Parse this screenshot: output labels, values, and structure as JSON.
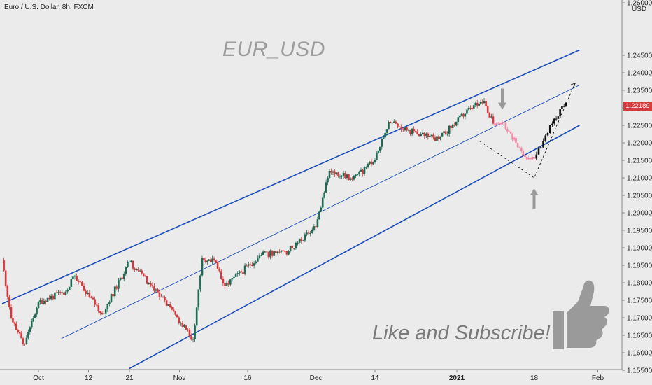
{
  "header": {
    "symbol_line": "Euro / U.S. Dollar, 8h, FXCM",
    "price_axis_unit": "USD"
  },
  "watermark": "EUR_USD",
  "call_to_action": "Like and Subscribe!",
  "current_price": "1.22189",
  "colors": {
    "bull": "#1e6b55",
    "bear": "#d9373b",
    "projection_bear": "#f08aa6",
    "projection_bull": "#111111",
    "channel": "#1b4fb8",
    "arrow": "#9a9a9a",
    "price_tag": "#d83a3e"
  },
  "chart_data": {
    "type": "candlestick",
    "xaxis_labels": [
      "Oct",
      "12",
      "21",
      "Nov",
      "16",
      "Dec",
      "14",
      "2021",
      "18",
      "Feb"
    ],
    "yaxis_ticks": [
      "1.26000",
      "1.24500",
      "1.24000",
      "1.23500",
      "1.23000",
      "1.22500",
      "1.22000",
      "1.21500",
      "1.21000",
      "1.20500",
      "1.20000",
      "1.19500",
      "1.19000",
      "1.18500",
      "1.18000",
      "1.17500",
      "1.17000",
      "1.16500",
      "1.16000",
      "1.15500"
    ],
    "ylim": [
      1.1535,
      1.2605
    ],
    "path_points": [
      {
        "date": "Sep 23",
        "price": 1.1865
      },
      {
        "date": "Sep 25",
        "price": 1.17
      },
      {
        "date": "Sep 28",
        "price": 1.1625
      },
      {
        "date": "Oct 1",
        "price": 1.1745
      },
      {
        "date": "Oct 7",
        "price": 1.1775
      },
      {
        "date": "Oct 9",
        "price": 1.182
      },
      {
        "date": "Oct 15",
        "price": 1.171
      },
      {
        "date": "Oct 21",
        "price": 1.186
      },
      {
        "date": "Oct 28",
        "price": 1.176
      },
      {
        "date": "Nov 4",
        "price": 1.164
      },
      {
        "date": "Nov 6",
        "price": 1.187
      },
      {
        "date": "Nov 9",
        "price": 1.186
      },
      {
        "date": "Nov 11",
        "price": 1.179
      },
      {
        "date": "Nov 19",
        "price": 1.188
      },
      {
        "date": "Nov 25",
        "price": 1.189
      },
      {
        "date": "Dec 1",
        "price": 1.196
      },
      {
        "date": "Dec 4",
        "price": 1.212
      },
      {
        "date": "Dec 9",
        "price": 1.2095
      },
      {
        "date": "Dec 14",
        "price": 1.215
      },
      {
        "date": "Dec 17",
        "price": 1.226
      },
      {
        "date": "Dec 21",
        "price": 1.2235
      },
      {
        "date": "Dec 28",
        "price": 1.221
      },
      {
        "date": "Jan 4",
        "price": 1.23
      },
      {
        "date": "Jan 7",
        "price": 1.232
      },
      {
        "date": "Jan 9",
        "price": 1.2255
      }
    ],
    "projection_down": [
      {
        "date": "Jan 9",
        "price": 1.2255
      },
      {
        "date": "Jan 11",
        "price": 1.226
      },
      {
        "date": "Jan 14",
        "price": 1.22
      },
      {
        "date": "Jan 16",
        "price": 1.216
      },
      {
        "date": "Jan 18",
        "price": 1.2155
      }
    ],
    "projection_up": [
      {
        "date": "Jan 18",
        "price": 1.2155
      },
      {
        "date": "Jan 20",
        "price": 1.2205
      },
      {
        "date": "Jan 22",
        "price": 1.2255
      },
      {
        "date": "Jan 25",
        "price": 1.2315
      }
    ],
    "channel_lines": [
      {
        "name": "upper",
        "from": {
          "date": "Sep 23",
          "price": 1.174
        },
        "to": {
          "date": "Jan 28",
          "price": 1.2465
        }
      },
      {
        "name": "middle",
        "from": {
          "date": "Oct 6",
          "price": 1.164
        },
        "to": {
          "date": "Jan 28",
          "price": 1.2365
        }
      },
      {
        "name": "lower",
        "from": {
          "date": "Oct 21",
          "price": 1.1555
        },
        "to": {
          "date": "Jan 28",
          "price": 1.225
        }
      }
    ],
    "annotations": [
      {
        "type": "arrow-down",
        "date": "Jan 11",
        "price": 1.2295
      },
      {
        "type": "arrow-up",
        "date": "Jan 18",
        "price": 1.207
      },
      {
        "type": "dashed-triangle",
        "points": [
          {
            "date": "Jan 6",
            "price": 1.2205
          },
          {
            "date": "Jan 18",
            "price": 1.21
          },
          {
            "date": "Jan 27",
            "price": 1.237
          }
        ]
      }
    ]
  }
}
